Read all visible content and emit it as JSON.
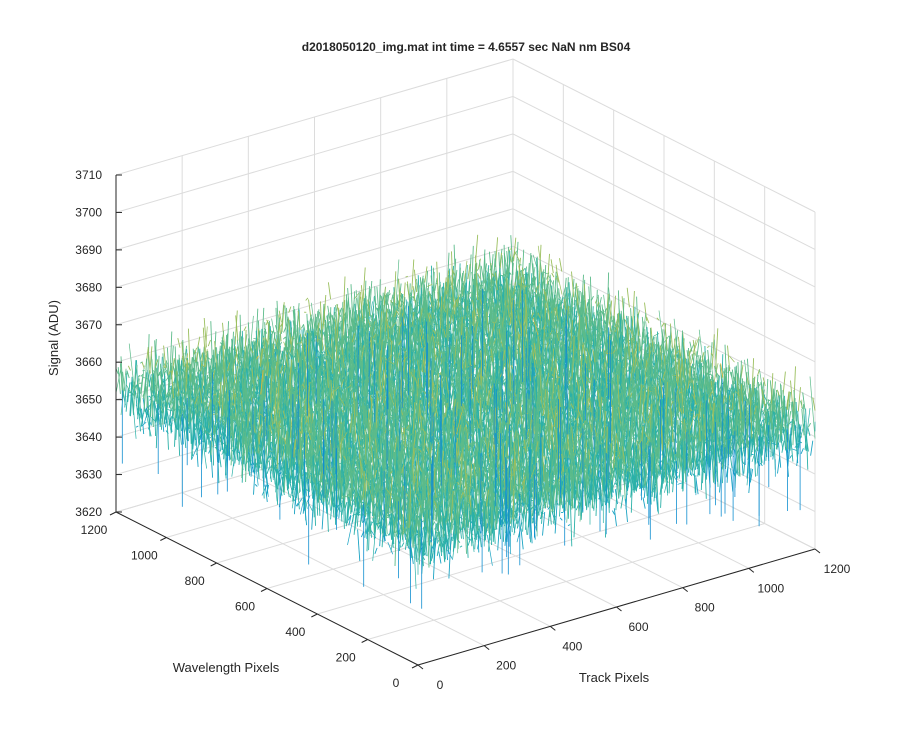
{
  "chart_data": {
    "type": "surface",
    "title": "d2018050120_img.mat int time = 4.6557 sec  NaN nm BS04",
    "xlabel": "Track Pixels",
    "ylabel": "Wavelength Pixels",
    "zlabel": "Signal (ADU)",
    "xlim": [
      0,
      1200
    ],
    "ylim": [
      0,
      1200
    ],
    "zlim": [
      3620,
      3710
    ],
    "xticks": [
      "0",
      "200",
      "400",
      "600",
      "800",
      "1000",
      "1200"
    ],
    "yticks": [
      "0",
      "200",
      "400",
      "600",
      "800",
      "1000",
      "1200"
    ],
    "zticks": [
      "3620",
      "3630",
      "3640",
      "3650",
      "3660",
      "3670",
      "3680",
      "3690",
      "3700",
      "3710"
    ],
    "grid": true,
    "colormap": [
      "#0a6fcf",
      "#118fd0",
      "#1aa3c3",
      "#2bb1a8",
      "#5cbb8a",
      "#9bbf5e",
      "#d6b93c",
      "#f2c83a"
    ],
    "mean_signal": 3653,
    "signal_min_approx": 3628,
    "signal_max_approx": 3702
  }
}
